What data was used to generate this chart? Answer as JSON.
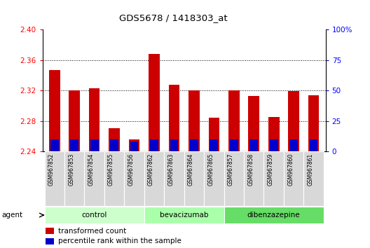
{
  "title": "GDS5678 / 1418303_at",
  "samples": [
    "GSM967852",
    "GSM967853",
    "GSM967854",
    "GSM967855",
    "GSM967856",
    "GSM967862",
    "GSM967863",
    "GSM967864",
    "GSM967865",
    "GSM967857",
    "GSM967858",
    "GSM967859",
    "GSM967860",
    "GSM967861"
  ],
  "transformed_count": [
    2.347,
    2.32,
    2.323,
    2.27,
    2.256,
    2.368,
    2.328,
    2.32,
    2.284,
    2.32,
    2.313,
    2.285,
    2.319,
    2.314
  ],
  "percentile_rank": [
    10,
    10,
    10,
    10,
    8,
    10,
    10,
    10,
    10,
    10,
    10,
    10,
    10,
    10
  ],
  "groups": [
    {
      "label": "control",
      "start": 0,
      "end": 5,
      "color": "#ccffcc"
    },
    {
      "label": "bevacizumab",
      "start": 5,
      "end": 9,
      "color": "#aaffaa"
    },
    {
      "label": "dibenzazepine",
      "start": 9,
      "end": 14,
      "color": "#66dd66"
    }
  ],
  "bar_color_red": "#cc0000",
  "bar_color_blue": "#0000cc",
  "ylim_left": [
    2.24,
    2.4
  ],
  "ylim_right": [
    0,
    100
  ],
  "yticks_left": [
    2.24,
    2.28,
    2.32,
    2.36,
    2.4
  ],
  "yticks_right": [
    0,
    25,
    50,
    75,
    100
  ],
  "ytick_labels_right": [
    "0",
    "25",
    "50",
    "75",
    "100%"
  ],
  "bar_base": 2.24,
  "grid_color": "black",
  "legend_items": [
    {
      "label": "transformed count",
      "color": "#cc0000"
    },
    {
      "label": "percentile rank within the sample",
      "color": "#0000cc"
    }
  ]
}
